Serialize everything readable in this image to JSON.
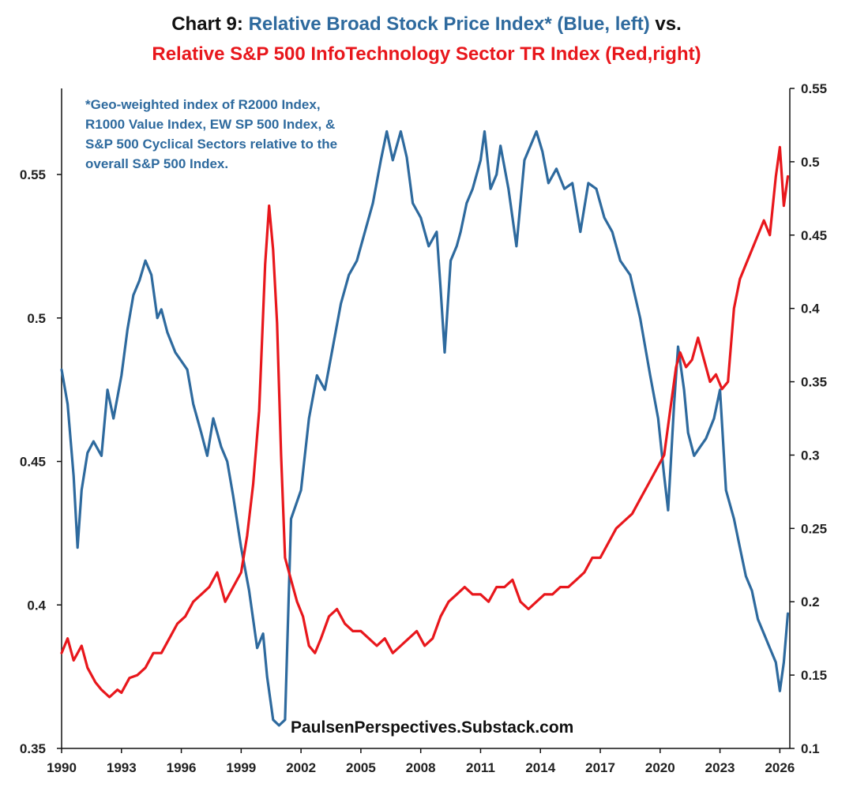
{
  "chart_data": {
    "type": "line",
    "title_prefix": "Chart 9: ",
    "title_blue": "Relative Broad Stock Price Index* (Blue, left)",
    "title_suffix": " vs.",
    "title_red": "Relative S&P 500 InfoTechnology Sector TR Index (Red,right)",
    "annotation": "*Geo-weighted index of R2000 Index, R1000 Value Index, EW SP 500 Index, & S&P 500 Cyclical Sectors relative to the overall S&P 500 Index.",
    "source": "PaulsenPerspectives.Substack.com",
    "colors": {
      "blue": "#2e6a9e",
      "red": "#e8171c"
    },
    "x_range": [
      1990,
      2026.5
    ],
    "x_ticks": [
      "1990",
      "1993",
      "1996",
      "1999",
      "2002",
      "2005",
      "2008",
      "2011",
      "2014",
      "2017",
      "2020",
      "2023",
      "2026"
    ],
    "y_left": {
      "range": [
        0.35,
        0.58
      ],
      "ticks": [
        "0.35",
        "0.4",
        "0.45",
        "0.5",
        "0.55"
      ]
    },
    "y_right": {
      "range": [
        0.1,
        0.55
      ],
      "ticks": [
        "0.1",
        "0.15",
        "0.2",
        "0.25",
        "0.3",
        "0.35",
        "0.4",
        "0.45",
        "0.5",
        "0.55"
      ]
    },
    "series": [
      {
        "name": "Relative Broad Stock Price Index",
        "axis": "left",
        "x": [
          1990.0,
          1990.3,
          1990.6,
          1990.8,
          1991.0,
          1991.3,
          1991.6,
          1992.0,
          1992.3,
          1992.6,
          1993.0,
          1993.3,
          1993.6,
          1993.9,
          1994.2,
          1994.5,
          1994.8,
          1995.0,
          1995.3,
          1995.7,
          1996.0,
          1996.3,
          1996.6,
          1997.0,
          1997.3,
          1997.6,
          1998.0,
          1998.3,
          1998.6,
          1999.0,
          1999.4,
          1999.8,
          2000.1,
          2000.3,
          2000.6,
          2000.9,
          2001.2,
          2001.5,
          2002.0,
          2002.4,
          2002.8,
          2003.2,
          2003.6,
          2004.0,
          2004.4,
          2004.8,
          2005.2,
          2005.6,
          2006.0,
          2006.3,
          2006.6,
          2007.0,
          2007.3,
          2007.6,
          2008.0,
          2008.4,
          2008.8,
          2009.0,
          2009.2,
          2009.5,
          2009.8,
          2010.0,
          2010.3,
          2010.6,
          2011.0,
          2011.2,
          2011.5,
          2011.8,
          2012.0,
          2012.4,
          2012.8,
          2013.2,
          2013.5,
          2013.8,
          2014.1,
          2014.4,
          2014.8,
          2015.2,
          2015.6,
          2016.0,
          2016.4,
          2016.8,
          2017.2,
          2017.6,
          2018.0,
          2018.5,
          2019.0,
          2019.5,
          2019.9,
          2020.2,
          2020.4,
          2020.7,
          2020.9,
          2021.2,
          2021.4,
          2021.7,
          2022.0,
          2022.3,
          2022.7,
          2023.0,
          2023.3,
          2023.7,
          2024.0,
          2024.3,
          2024.6,
          2024.9,
          2025.2,
          2025.5,
          2025.8,
          2026.0,
          2026.2,
          2026.4
        ],
        "values": [
          0.482,
          0.47,
          0.445,
          0.42,
          0.44,
          0.453,
          0.457,
          0.452,
          0.475,
          0.465,
          0.48,
          0.496,
          0.508,
          0.513,
          0.52,
          0.515,
          0.5,
          0.503,
          0.495,
          0.488,
          0.485,
          0.482,
          0.47,
          0.46,
          0.452,
          0.465,
          0.455,
          0.45,
          0.438,
          0.42,
          0.405,
          0.385,
          0.39,
          0.375,
          0.36,
          0.358,
          0.36,
          0.43,
          0.44,
          0.465,
          0.48,
          0.475,
          0.49,
          0.505,
          0.515,
          0.52,
          0.53,
          0.54,
          0.555,
          0.565,
          0.555,
          0.565,
          0.556,
          0.54,
          0.535,
          0.525,
          0.53,
          0.51,
          0.488,
          0.52,
          0.525,
          0.53,
          0.54,
          0.545,
          0.555,
          0.565,
          0.545,
          0.55,
          0.56,
          0.545,
          0.525,
          0.555,
          0.56,
          0.565,
          0.558,
          0.547,
          0.552,
          0.545,
          0.547,
          0.53,
          0.547,
          0.545,
          0.535,
          0.53,
          0.52,
          0.515,
          0.5,
          0.48,
          0.465,
          0.445,
          0.433,
          0.47,
          0.49,
          0.475,
          0.46,
          0.452,
          0.455,
          0.458,
          0.465,
          0.475,
          0.44,
          0.43,
          0.42,
          0.41,
          0.405,
          0.395,
          0.39,
          0.385,
          0.38,
          0.37,
          0.38,
          0.397
        ]
      },
      {
        "name": "Relative S&P 500 InfoTechnology Sector TR Index",
        "axis": "right",
        "x": [
          1990.0,
          1990.3,
          1990.6,
          1991.0,
          1991.3,
          1991.7,
          1992.0,
          1992.4,
          1992.8,
          1993.0,
          1993.4,
          1993.8,
          1994.2,
          1994.6,
          1995.0,
          1995.4,
          1995.8,
          1996.2,
          1996.6,
          1997.0,
          1997.4,
          1997.8,
          1998.2,
          1998.6,
          1999.0,
          1999.3,
          1999.6,
          1999.9,
          2000.2,
          2000.4,
          2000.6,
          2000.8,
          2001.0,
          2001.2,
          2001.5,
          2001.8,
          2002.1,
          2002.4,
          2002.7,
          2003.0,
          2003.4,
          2003.8,
          2004.2,
          2004.6,
          2005.0,
          2005.4,
          2005.8,
          2006.2,
          2006.6,
          2007.0,
          2007.4,
          2007.8,
          2008.2,
          2008.6,
          2009.0,
          2009.4,
          2009.8,
          2010.2,
          2010.6,
          2011.0,
          2011.4,
          2011.8,
          2012.2,
          2012.6,
          2013.0,
          2013.4,
          2013.8,
          2014.2,
          2014.6,
          2015.0,
          2015.4,
          2015.8,
          2016.2,
          2016.6,
          2017.0,
          2017.4,
          2017.8,
          2018.2,
          2018.6,
          2019.0,
          2019.4,
          2019.8,
          2020.2,
          2020.5,
          2020.8,
          2021.0,
          2021.3,
          2021.6,
          2021.9,
          2022.2,
          2022.5,
          2022.8,
          2023.1,
          2023.4,
          2023.7,
          2024.0,
          2024.3,
          2024.6,
          2024.9,
          2025.2,
          2025.5,
          2025.8,
          2026.0,
          2026.2,
          2026.4
        ],
        "values": [
          0.165,
          0.175,
          0.16,
          0.17,
          0.155,
          0.145,
          0.14,
          0.135,
          0.14,
          0.138,
          0.148,
          0.15,
          0.155,
          0.165,
          0.165,
          0.175,
          0.185,
          0.19,
          0.2,
          0.205,
          0.21,
          0.22,
          0.2,
          0.21,
          0.22,
          0.245,
          0.28,
          0.33,
          0.43,
          0.47,
          0.44,
          0.39,
          0.3,
          0.23,
          0.215,
          0.2,
          0.19,
          0.17,
          0.165,
          0.175,
          0.19,
          0.195,
          0.185,
          0.18,
          0.18,
          0.175,
          0.17,
          0.175,
          0.165,
          0.17,
          0.175,
          0.18,
          0.17,
          0.175,
          0.19,
          0.2,
          0.205,
          0.21,
          0.205,
          0.205,
          0.2,
          0.21,
          0.21,
          0.215,
          0.2,
          0.195,
          0.2,
          0.205,
          0.205,
          0.21,
          0.21,
          0.215,
          0.22,
          0.23,
          0.23,
          0.24,
          0.25,
          0.255,
          0.26,
          0.27,
          0.28,
          0.29,
          0.3,
          0.33,
          0.36,
          0.37,
          0.36,
          0.365,
          0.38,
          0.365,
          0.35,
          0.355,
          0.345,
          0.35,
          0.4,
          0.42,
          0.43,
          0.44,
          0.45,
          0.46,
          0.45,
          0.49,
          0.51,
          0.47,
          0.49
        ]
      }
    ]
  }
}
